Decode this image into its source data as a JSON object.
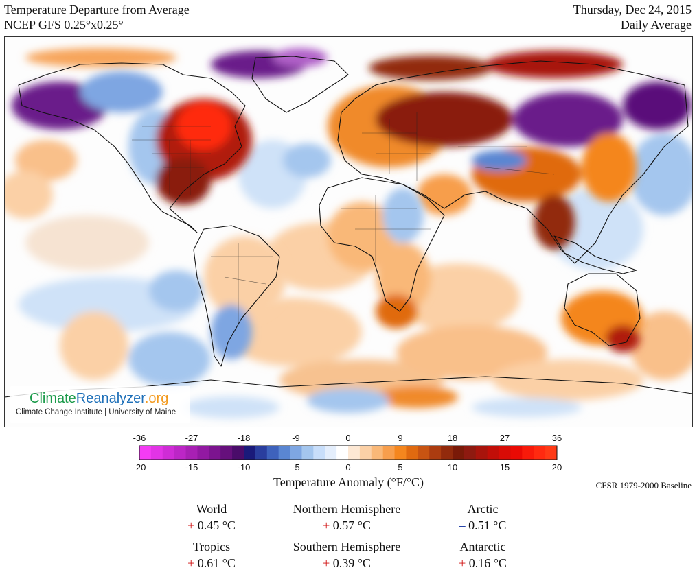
{
  "header": {
    "title": "Temperature Departure from Average",
    "subtitle": "NCEP GFS 0.25°x0.25°",
    "date": "Thursday, Dec 24, 2015",
    "period": "Daily Average"
  },
  "logo": {
    "part1": "Climate",
    "part2": "Reanalyzer",
    "part3": ".org",
    "sub": "Climate Change Institute | University of Maine"
  },
  "scale": {
    "f_ticks": [
      "-36",
      "-27",
      "-18",
      "-9",
      "0",
      "9",
      "18",
      "27",
      "36"
    ],
    "c_ticks": [
      "-20",
      "-15",
      "-10",
      "-5",
      "0",
      "5",
      "10",
      "15",
      "20"
    ],
    "title": "Temperature Anomaly (°F/°C)",
    "baseline": "CFSR 1979-2000 Baseline",
    "colors": [
      "#f43cf4",
      "#e234e6",
      "#cf2cd6",
      "#bc26c6",
      "#a820b4",
      "#9219a2",
      "#7c148f",
      "#66107c",
      "#4a0c6a",
      "#1a1a7a",
      "#2a3e9e",
      "#3e62bc",
      "#5a86d2",
      "#7ea6e2",
      "#a4c6ee",
      "#c8defa",
      "#e4eefc",
      "#ffffff",
      "#fde8d4",
      "#fbd0a6",
      "#f9b878",
      "#f79e4c",
      "#f4861e",
      "#e06a10",
      "#c85412",
      "#ac3c10",
      "#922a0c",
      "#7a1a08",
      "#8e1a10",
      "#a8140c",
      "#c20e08",
      "#d80c06",
      "#ea0a04",
      "#f81a0a",
      "#ff2a10",
      "#ff3a16"
    ]
  },
  "stats": [
    {
      "label": "World",
      "sign": "+",
      "value": "0.45 °C"
    },
    {
      "label": "Northern Hemisphere",
      "sign": "+",
      "value": "0.57 °C"
    },
    {
      "label": "Arctic",
      "sign": "–",
      "value": "0.51 °C"
    },
    {
      "label": "Tropics",
      "sign": "+",
      "value": "0.61 °C"
    },
    {
      "label": "Southern Hemisphere",
      "sign": "+",
      "value": "0.39 °C"
    },
    {
      "label": "Antarctic",
      "sign": "+",
      "value": "0.16 °C"
    }
  ],
  "colors": {
    "warm_strong": "#e61a0a",
    "warm_deep": "#8a1a0c",
    "warm_mid": "#f08a2a",
    "warm_light": "#fbd7b0",
    "cool_light": "#cfe2f8",
    "cool_mid": "#7fb0e6",
    "cold_deep": "#5a0f7a",
    "cold_magenta": "#c020c8"
  }
}
